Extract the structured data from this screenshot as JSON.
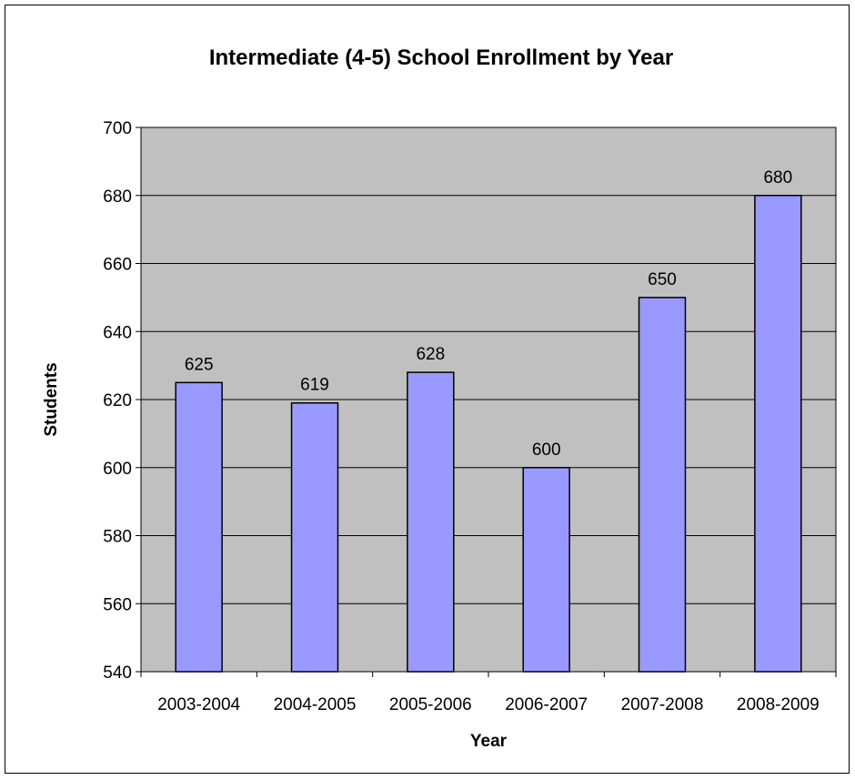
{
  "chart_data": {
    "type": "bar",
    "title": "Intermediate (4-5) School Enrollment by Year",
    "xlabel": "Year",
    "ylabel": "Students",
    "categories": [
      "2003-2004",
      "2004-2005",
      "2005-2006",
      "2006-2007",
      "2007-2008",
      "2008-2009"
    ],
    "values": [
      625,
      619,
      628,
      600,
      650,
      680
    ],
    "data_labels": [
      "625",
      "619",
      "628",
      "600",
      "650",
      "680"
    ],
    "ylim": [
      540,
      700
    ],
    "yticks": [
      540,
      560,
      580,
      600,
      620,
      640,
      660,
      680,
      700
    ],
    "grid": true,
    "legend": "none",
    "colors": {
      "bar_fill": "#9999ff",
      "bar_stroke": "#000000",
      "plot_background": "#c0c0c0",
      "gridline": "#000000"
    }
  }
}
